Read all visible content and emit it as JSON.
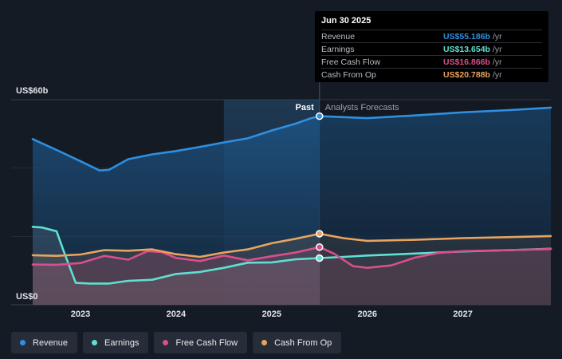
{
  "chart_data": {
    "type": "area",
    "y_axis": {
      "top_label": "US$60b",
      "bottom_label": "US$0",
      "ylim": [
        0,
        60
      ]
    },
    "x_ticks": [
      {
        "label": "2023",
        "x": 2023.0
      },
      {
        "label": "2024",
        "x": 2024.0
      },
      {
        "label": "2025",
        "x": 2025.0
      },
      {
        "label": "2026",
        "x": 2026.0
      },
      {
        "label": "2027",
        "x": 2027.0
      }
    ],
    "xlim": [
      2022.5,
      2027.92
    ],
    "divider": {
      "x": 2025.5,
      "past_label": "Past",
      "forecast_label": "Analysts Forecasts"
    },
    "series": [
      {
        "name": "Revenue",
        "color": "#2f8fe0",
        "points": [
          [
            2022.5,
            48.5
          ],
          [
            2022.75,
            45.3
          ],
          [
            2023.0,
            42.0
          ],
          [
            2023.2,
            39.3
          ],
          [
            2023.3,
            39.5
          ],
          [
            2023.5,
            42.6
          ],
          [
            2023.75,
            44.0
          ],
          [
            2024.0,
            45.0
          ],
          [
            2024.25,
            46.2
          ],
          [
            2024.5,
            47.5
          ],
          [
            2024.75,
            48.7
          ],
          [
            2025.0,
            51.0
          ],
          [
            2025.25,
            53.0
          ],
          [
            2025.4,
            54.5
          ],
          [
            2025.5,
            55.186
          ],
          [
            2025.75,
            54.9
          ],
          [
            2026.0,
            54.6
          ],
          [
            2026.5,
            55.4
          ],
          [
            2027.0,
            56.3
          ],
          [
            2027.5,
            57.0
          ],
          [
            2027.92,
            57.7
          ]
        ]
      },
      {
        "name": "Earnings",
        "color": "#5fe0d2",
        "points": [
          [
            2022.5,
            22.8
          ],
          [
            2022.6,
            22.6
          ],
          [
            2022.75,
            21.5
          ],
          [
            2022.82,
            16.0
          ],
          [
            2022.95,
            6.4
          ],
          [
            2023.1,
            6.2
          ],
          [
            2023.3,
            6.2
          ],
          [
            2023.5,
            7.0
          ],
          [
            2023.75,
            7.3
          ],
          [
            2024.0,
            9.0
          ],
          [
            2024.25,
            9.6
          ],
          [
            2024.5,
            10.8
          ],
          [
            2024.75,
            12.3
          ],
          [
            2025.0,
            12.4
          ],
          [
            2025.25,
            13.3
          ],
          [
            2025.5,
            13.654
          ],
          [
            2025.75,
            14.0
          ],
          [
            2026.0,
            14.4
          ],
          [
            2026.5,
            15.0
          ],
          [
            2027.0,
            15.6
          ],
          [
            2027.5,
            16.0
          ],
          [
            2027.92,
            16.4
          ]
        ]
      },
      {
        "name": "Free Cash Flow",
        "color": "#d94f8b",
        "points": [
          [
            2022.5,
            11.8
          ],
          [
            2022.75,
            11.7
          ],
          [
            2023.0,
            12.2
          ],
          [
            2023.25,
            14.3
          ],
          [
            2023.5,
            13.2
          ],
          [
            2023.7,
            15.7
          ],
          [
            2023.85,
            15.4
          ],
          [
            2024.0,
            13.7
          ],
          [
            2024.25,
            12.8
          ],
          [
            2024.5,
            14.4
          ],
          [
            2024.75,
            13.0
          ],
          [
            2025.0,
            14.2
          ],
          [
            2025.25,
            15.3
          ],
          [
            2025.5,
            16.866
          ],
          [
            2025.65,
            15.0
          ],
          [
            2025.85,
            11.3
          ],
          [
            2026.0,
            10.8
          ],
          [
            2026.25,
            11.5
          ],
          [
            2026.5,
            13.8
          ],
          [
            2026.75,
            15.2
          ],
          [
            2027.0,
            15.7
          ],
          [
            2027.5,
            16.0
          ],
          [
            2027.92,
            16.3
          ]
        ]
      },
      {
        "name": "Cash From Op",
        "color": "#e8a45f",
        "points": [
          [
            2022.5,
            14.5
          ],
          [
            2022.75,
            14.3
          ],
          [
            2023.0,
            14.7
          ],
          [
            2023.25,
            16.0
          ],
          [
            2023.5,
            15.8
          ],
          [
            2023.75,
            16.2
          ],
          [
            2024.0,
            14.8
          ],
          [
            2024.25,
            14.0
          ],
          [
            2024.5,
            15.3
          ],
          [
            2024.75,
            16.2
          ],
          [
            2025.0,
            18.0
          ],
          [
            2025.25,
            19.3
          ],
          [
            2025.5,
            20.788
          ],
          [
            2025.75,
            19.5
          ],
          [
            2026.0,
            18.7
          ],
          [
            2026.5,
            19.0
          ],
          [
            2027.0,
            19.5
          ],
          [
            2027.5,
            19.8
          ],
          [
            2027.92,
            20.1
          ]
        ]
      }
    ],
    "tooltip": {
      "title": "Jun 30 2025",
      "unit": "/yr",
      "rows": [
        {
          "label": "Revenue",
          "value": "US$55.186b",
          "color": "#2f8fe0"
        },
        {
          "label": "Earnings",
          "value": "US$13.654b",
          "color": "#5fe0d2"
        },
        {
          "label": "Free Cash Flow",
          "value": "US$16.866b",
          "color": "#d94f8b"
        },
        {
          "label": "Cash From Op",
          "value": "US$20.788b",
          "color": "#e8a45f"
        }
      ]
    },
    "legend": [
      {
        "label": "Revenue",
        "color": "#2f8fe0"
      },
      {
        "label": "Earnings",
        "color": "#5fe0d2"
      },
      {
        "label": "Free Cash Flow",
        "color": "#d94f8b"
      },
      {
        "label": "Cash From Op",
        "color": "#e8a45f"
      }
    ]
  }
}
